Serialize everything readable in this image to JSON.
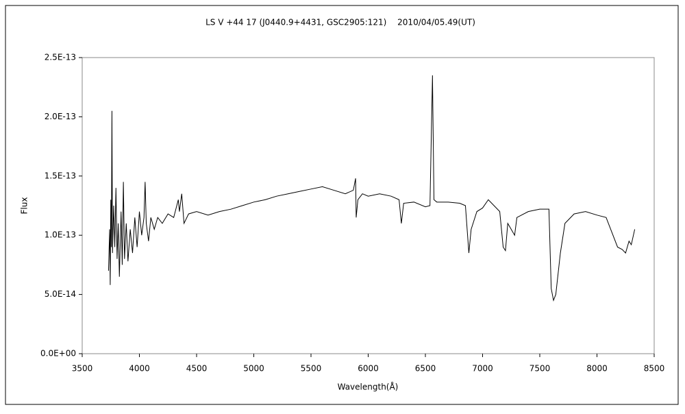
{
  "chart_data": {
    "type": "line",
    "title": "LS V +44 17 (J0440.9+4431, GSC2905:121)　 2010/04/05.49(UT)",
    "x_label": "Wavelength(Å)",
    "y_label": "Flux",
    "xlim": [
      3500,
      8500
    ],
    "xticks": [
      3500,
      4000,
      4500,
      5000,
      5500,
      6000,
      6500,
      7000,
      7500,
      8000,
      8500
    ],
    "ylim": [
      0,
      2.5e-13
    ],
    "yticks": [
      {
        "value": 0,
        "label": "0.0E+00"
      },
      {
        "value": 5e-14,
        "label": "5.0E-14"
      },
      {
        "value": 1e-13,
        "label": "1.0E-13"
      },
      {
        "value": 1.5e-13,
        "label": "1.5E-13"
      },
      {
        "value": 2e-13,
        "label": "2.0E-13"
      },
      {
        "value": 2.5e-13,
        "label": "2.5E-13"
      }
    ],
    "grid": false,
    "series": [
      {
        "color": "#000000",
        "x": [
          3730,
          3740,
          3745,
          3750,
          3755,
          3760,
          3765,
          3775,
          3785,
          3795,
          3805,
          3815,
          3825,
          3840,
          3850,
          3860,
          3870,
          3885,
          3900,
          3920,
          3940,
          3960,
          3980,
          4000,
          4020,
          4040,
          4050,
          4060,
          4080,
          4100,
          4130,
          4160,
          4200,
          4250,
          4300,
          4340,
          4350,
          4370,
          4390,
          4430,
          4500,
          4600,
          4700,
          4800,
          4900,
          5000,
          5100,
          5200,
          5300,
          5400,
          5500,
          5600,
          5700,
          5800,
          5870,
          5890,
          5895,
          5910,
          5950,
          6000,
          6100,
          6200,
          6270,
          6290,
          6310,
          6400,
          6500,
          6540,
          6562,
          6575,
          6600,
          6700,
          6800,
          6850,
          6880,
          6900,
          6950,
          7000,
          7050,
          7100,
          7150,
          7180,
          7200,
          7220,
          7250,
          7280,
          7300,
          7400,
          7500,
          7580,
          7600,
          7620,
          7640,
          7680,
          7720,
          7800,
          7900,
          8000,
          8080,
          8120,
          8180,
          8220,
          8250,
          8280,
          8300,
          8330
        ],
        "values": [
          7e-14,
          1.05e-13,
          5.8e-14,
          1.3e-13,
          9e-14,
          2.05e-13,
          8.5e-14,
          1.25e-13,
          9e-14,
          1.4e-13,
          8e-14,
          1.1e-13,
          6.5e-14,
          1.2e-13,
          7.5e-14,
          1.45e-13,
          8e-14,
          1.1e-13,
          7.8e-14,
          1.05e-13,
          8.5e-14,
          1.15e-13,
          9e-14,
          1.2e-13,
          1e-13,
          1.15e-13,
          1.45e-13,
          1.1e-13,
          9.5e-14,
          1.15e-13,
          1.05e-13,
          1.15e-13,
          1.1e-13,
          1.18e-13,
          1.15e-13,
          1.3e-13,
          1.2e-13,
          1.35e-13,
          1.1e-13,
          1.18e-13,
          1.2e-13,
          1.17e-13,
          1.2e-13,
          1.22e-13,
          1.25e-13,
          1.28e-13,
          1.3e-13,
          1.33e-13,
          1.35e-13,
          1.37e-13,
          1.39e-13,
          1.41e-13,
          1.38e-13,
          1.35e-13,
          1.38e-13,
          1.48e-13,
          1.15e-13,
          1.3e-13,
          1.35e-13,
          1.33e-13,
          1.35e-13,
          1.33e-13,
          1.3e-13,
          1.1e-13,
          1.27e-13,
          1.28e-13,
          1.24e-13,
          1.25e-13,
          2.35e-13,
          1.3e-13,
          1.28e-13,
          1.28e-13,
          1.27e-13,
          1.25e-13,
          8.5e-14,
          1.05e-13,
          1.2e-13,
          1.23e-13,
          1.3e-13,
          1.25e-13,
          1.2e-13,
          9e-14,
          8.7e-14,
          1.1e-13,
          1.05e-13,
          1e-13,
          1.15e-13,
          1.2e-13,
          1.22e-13,
          1.22e-13,
          5.5e-14,
          4.5e-14,
          5e-14,
          8.5e-14,
          1.1e-13,
          1.18e-13,
          1.2e-13,
          1.17e-13,
          1.15e-13,
          1.05e-13,
          9e-14,
          8.8e-14,
          8.5e-14,
          9.5e-14,
          9.2e-14,
          1.05e-13
        ]
      }
    ]
  }
}
